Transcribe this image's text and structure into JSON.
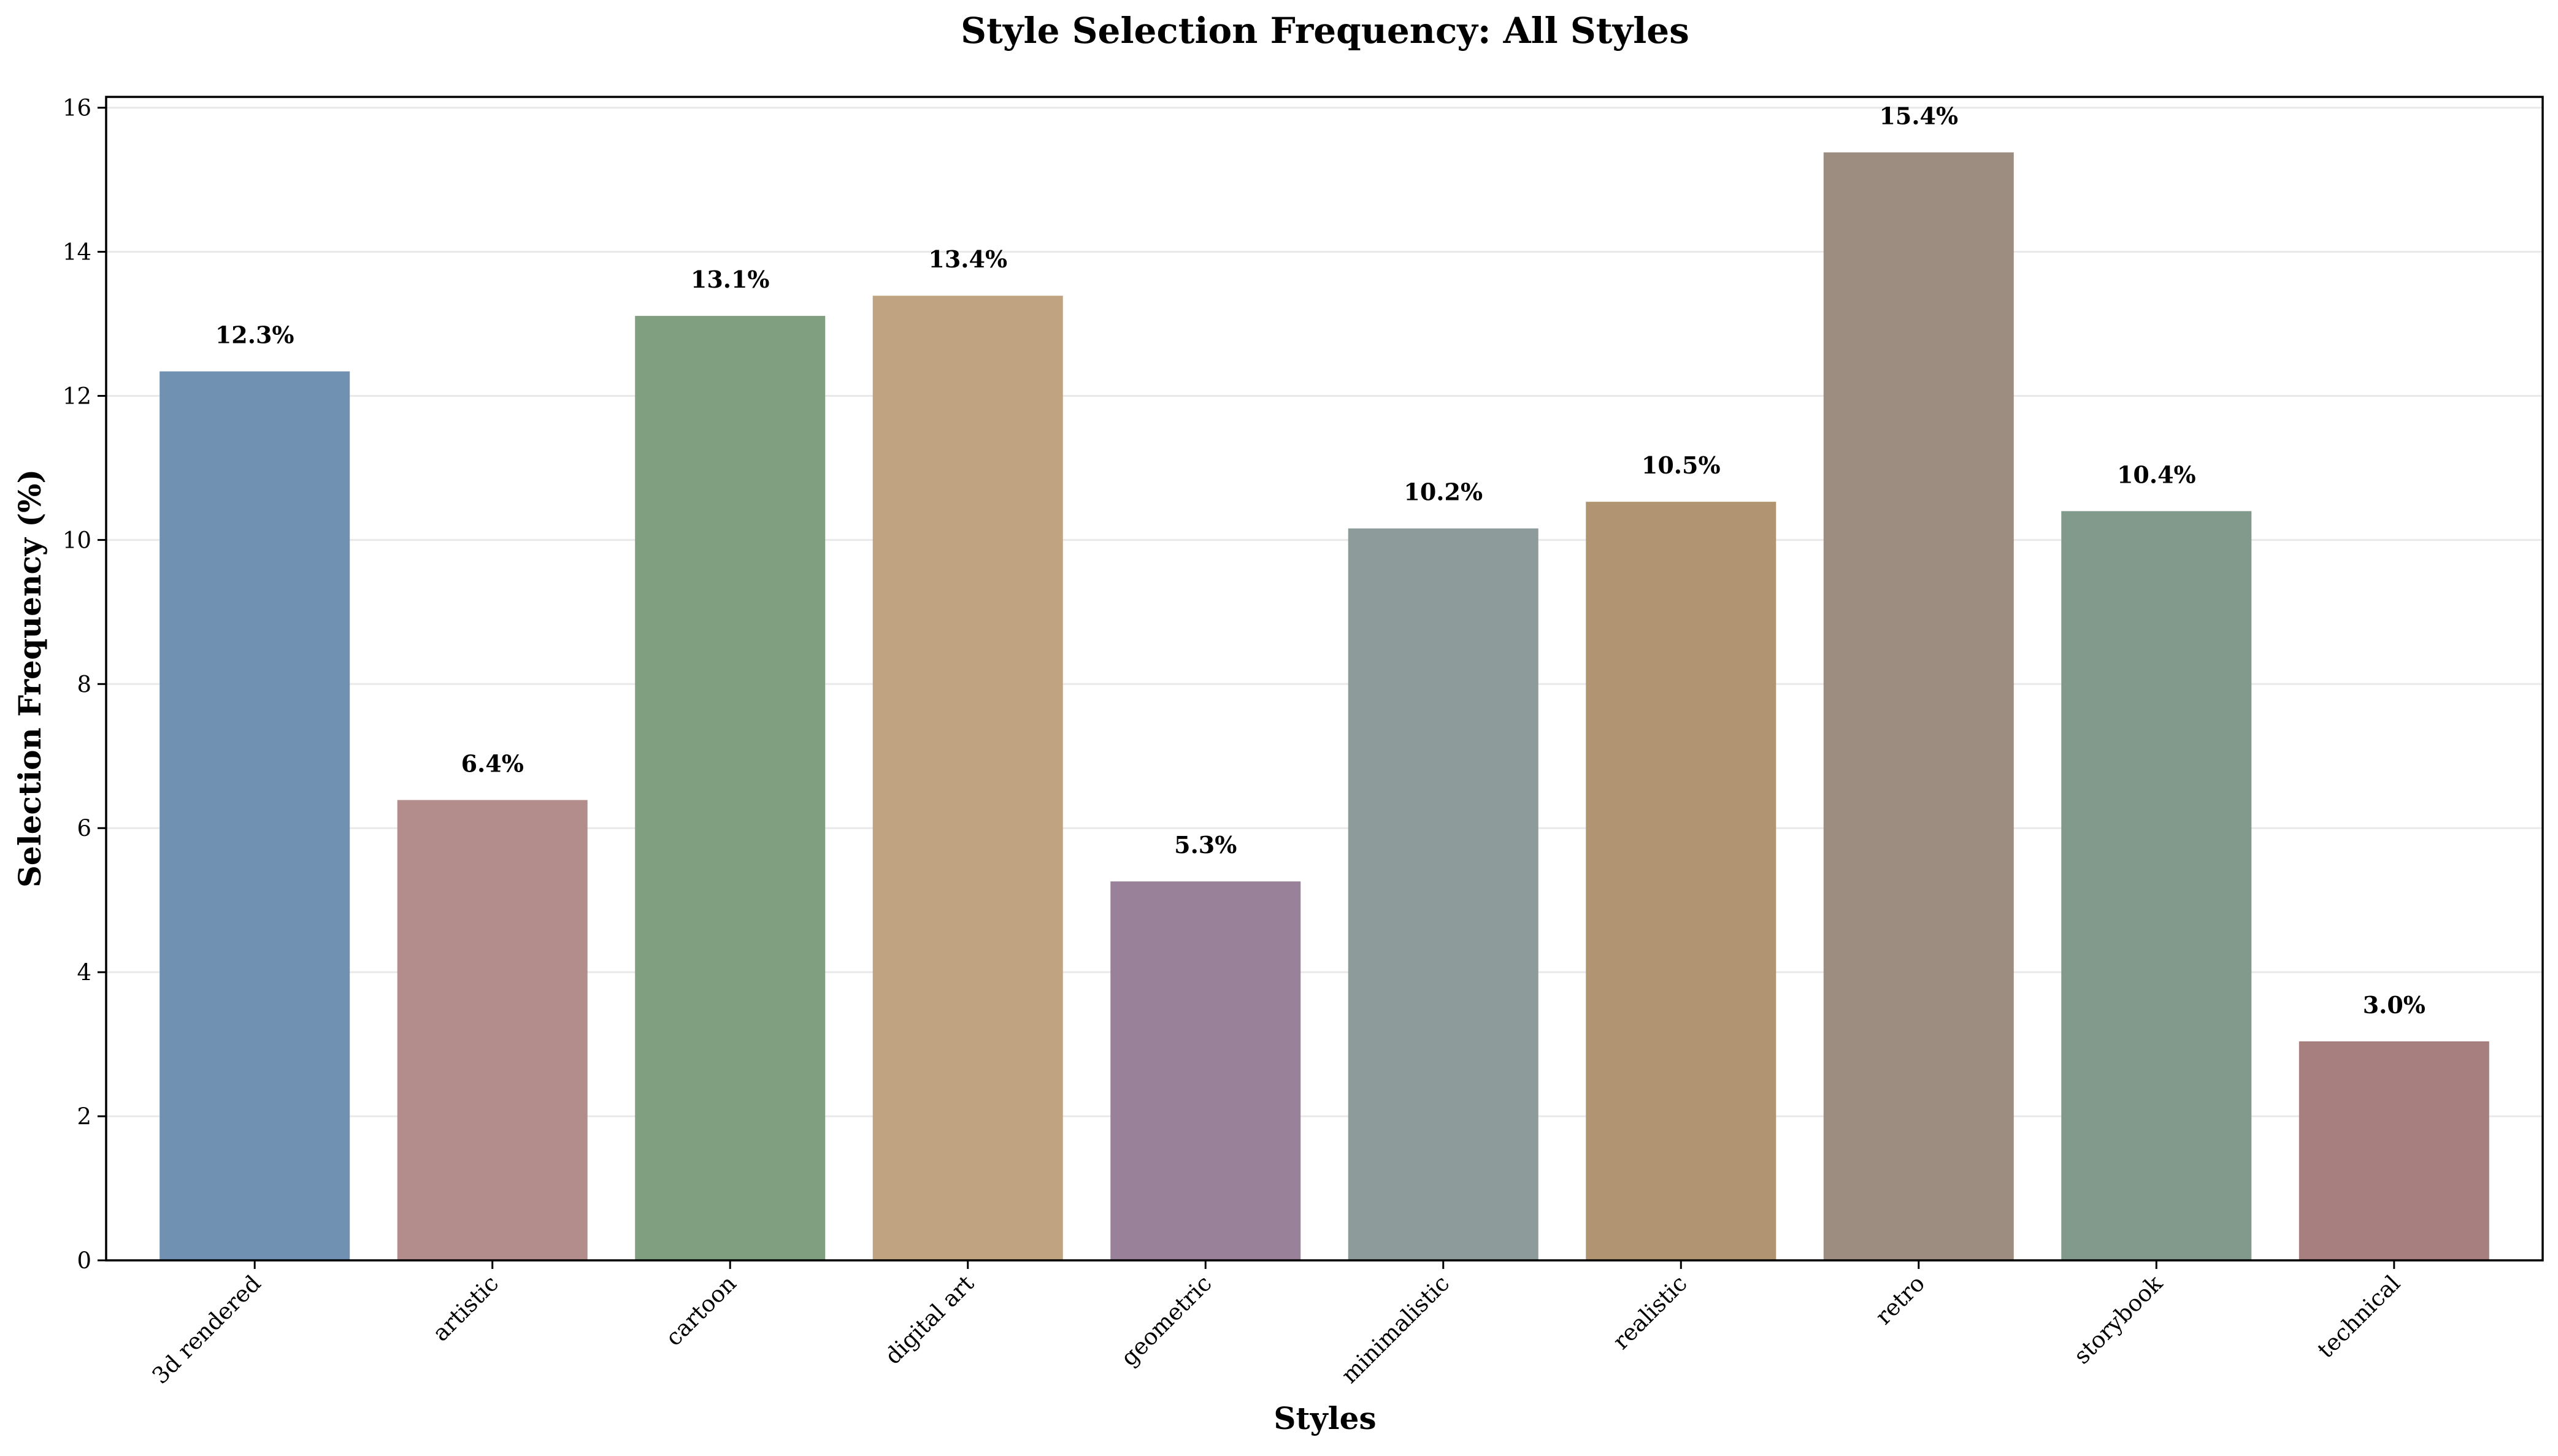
{
  "chart_data": {
    "type": "bar",
    "title": "Style Selection Frequency: All Styles",
    "xlabel": "Styles",
    "ylabel": "Selection Frequency (%)",
    "categories": [
      "3d rendered",
      "artistic",
      "cartoon",
      "digital art",
      "geometric",
      "minimalistic",
      "realistic",
      "retro",
      "storybook",
      "technical"
    ],
    "values": [
      12.34,
      6.39,
      13.11,
      13.39,
      5.26,
      10.16,
      10.53,
      15.38,
      10.4,
      3.04
    ],
    "value_labels": [
      "12.3%",
      "6.4%",
      "13.1%",
      "13.4%",
      "5.3%",
      "10.2%",
      "10.5%",
      "15.4%",
      "10.4%",
      "3.0%"
    ],
    "colors": [
      "#7191b3",
      "#b38c8c",
      "#809e80",
      "#c0a381",
      "#9a819a",
      "#8d9b9a",
      "#b19572",
      "#9c8d80",
      "#829a8b",
      "#a87f7f"
    ],
    "ylim": [
      0,
      16.15
    ],
    "yticks": [
      0,
      2,
      4,
      6,
      8,
      10,
      12,
      14,
      16
    ],
    "ytick_labels": [
      "0",
      "2",
      "4",
      "6",
      "8",
      "10",
      "12",
      "14",
      "16"
    ],
    "grid": "horizontal",
    "legend": "none"
  }
}
